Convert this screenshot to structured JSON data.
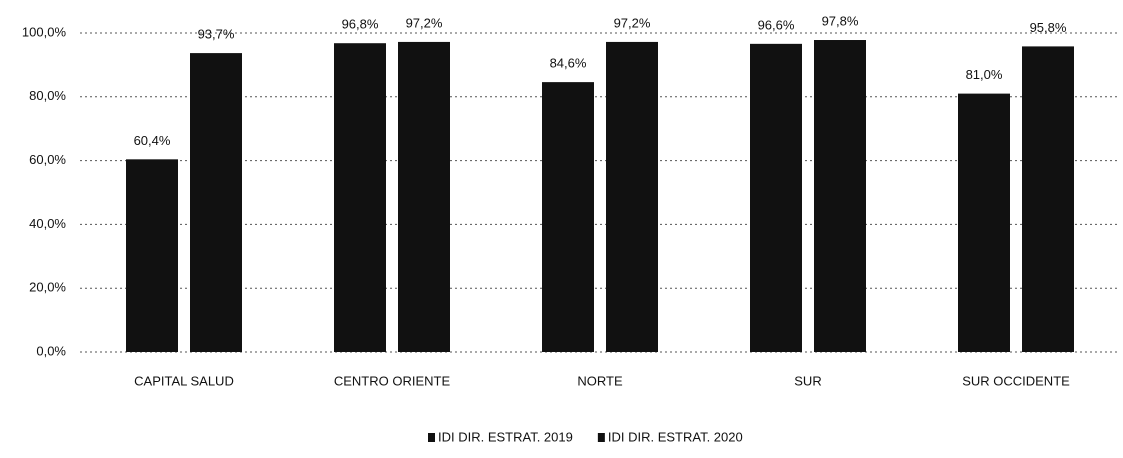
{
  "chart_data": {
    "type": "bar",
    "categories": [
      "CAPITAL SALUD",
      "CENTRO ORIENTE",
      "NORTE",
      "SUR",
      "SUR OCCIDENTE"
    ],
    "series": [
      {
        "name": "IDI DIR. ESTRAT. 2019",
        "color": "#111111",
        "values": [
          60.4,
          96.8,
          84.6,
          96.6,
          81.0
        ],
        "value_labels": [
          "60,4%",
          "96,8%",
          "84,6%",
          "96,6%",
          "81,0%"
        ]
      },
      {
        "name": "IDI DIR. ESTRAT. 2020",
        "color": "#111111",
        "values": [
          93.7,
          97.2,
          97.2,
          97.8,
          95.8
        ],
        "value_labels": [
          "93,7%",
          "97,2%",
          "97,2%",
          "97,8%",
          "95,8%"
        ]
      }
    ],
    "ylim": [
      0,
      100
    ],
    "yticks": [
      {
        "value": 0,
        "label": "0,0%"
      },
      {
        "value": 20,
        "label": "20,0%"
      },
      {
        "value": 40,
        "label": "40,0%"
      },
      {
        "value": 60,
        "label": "60,0%"
      },
      {
        "value": 80,
        "label": "80,0%"
      },
      {
        "value": 100,
        "label": "100,0%"
      }
    ],
    "grid": true,
    "legend": "bottom"
  }
}
